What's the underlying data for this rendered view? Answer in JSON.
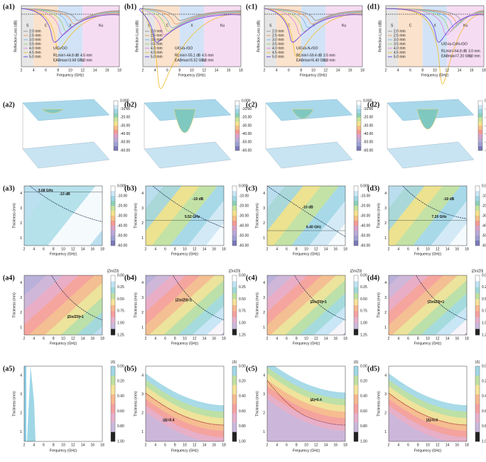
{
  "axes": {
    "frequency": "Frequency (GHz)",
    "thickness": "Thickness (mm)",
    "reflection_loss": "Reflection Loss (dB)",
    "freq_ticks": [
      "2",
      "4",
      "6",
      "8",
      "10",
      "12",
      "14",
      "16",
      "18"
    ],
    "thick_ticks": [
      "1",
      "2",
      "3",
      "4"
    ],
    "rl_colorbar": [
      "0.000",
      "-10.00",
      "-20.00",
      "-30.00",
      "-40.00",
      "-50.00",
      "-60.00"
    ],
    "zin_title": "|Zin/Z0|",
    "zin_colorbar": [
      "0.00",
      "0.25",
      "0.50",
      "0.75",
      "1.00",
      "1.25"
    ],
    "delta_title": "|Δ|",
    "delta_colorbar": [
      "0.00",
      "0.20",
      "0.40",
      "0.60",
      "0.80",
      "1.00"
    ]
  },
  "bands": [
    "S",
    "C",
    "X",
    "Ku"
  ],
  "thicknesses": [
    "2.0 mm",
    "2.5 mm",
    "3.0 mm",
    "3.5 mm",
    "4.0 mm",
    "4.5 mm",
    "5.0 mm"
  ],
  "columns": [
    {
      "labels": [
        "(a1)",
        "(a2)",
        "(a3)",
        "(a4)",
        "(a5)"
      ],
      "material": "UiO-rGO",
      "rl_min": "RLmin=-44.8 dB",
      "rl_thick": "4.5 mm",
      "eab": "EABmax=3.68 GHz",
      "eab_thick": "5.0 mm",
      "eab_label": "3.68 GHz",
      "db_label": "-10 dB",
      "zin_label": "|Zin/Z0|=1"
    },
    {
      "labels": [
        "(b1)",
        "(b2)",
        "(b3)",
        "(b4)",
        "(b5)"
      ],
      "material": "UiO-la-rGO",
      "rl_min": "RLmin=-55.1 dB",
      "rl_thick": "4.5 mm",
      "eab": "EABmax=5.52 GHz",
      "eab_thick": "2.8 mm",
      "eab_label": "5.52 GHz",
      "db_label": "-10 dB",
      "zin_label": "|Zin/Z0|=1",
      "delta_label": "|Δ|=0.4"
    },
    {
      "labels": [
        "(c1)",
        "(c2)",
        "(c3)",
        "(c4)",
        "(c5)"
      ],
      "material": "UiO-la-N-rGO",
      "rl_min": "RLmin=-59.4 dB",
      "rl_thick": "3.5 mm",
      "eab": "EABmax=6.40 GHz",
      "eab_thick": "2.3 mm",
      "eab_label": "6.40 GHz",
      "db_label": "-10 dB",
      "zin_label": "|Zin/Z0|=1",
      "delta_label": "|Δ|=0.4"
    },
    {
      "labels": [
        "(d1)",
        "(d2)",
        "(d3)",
        "(d4)",
        "(d5)"
      ],
      "material": "UiO-la-CoN-rGO",
      "rl_min": "RLmin=-64.8 dB",
      "rl_thick": "3.0 mm",
      "eab": "EABmax=7.20 GHz",
      "eab_thick": "3.0 mm",
      "eab_label": "7.20 GHz",
      "db_label": "-10 dB",
      "zin_label": "|Zin/Z0|=1",
      "delta_label": "|Δ|=0.4"
    }
  ]
}
